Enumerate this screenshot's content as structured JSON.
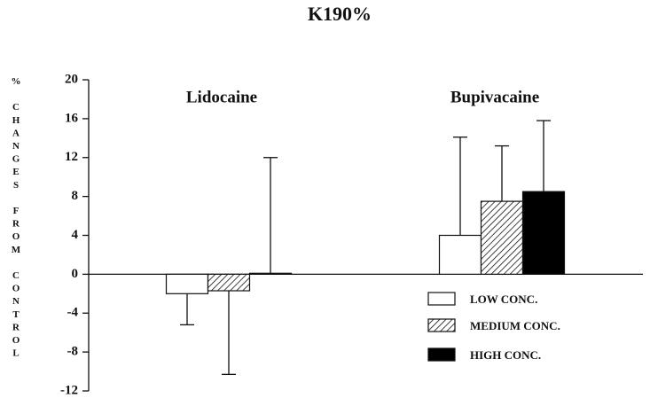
{
  "chart_data": {
    "type": "bar",
    "title": "K190%",
    "y_label": "% CHANGES FROM CONTROL",
    "categories": [
      "Lidocaine",
      "Bupivacaine"
    ],
    "series": [
      {
        "name": "LOW CONC.",
        "color": "#ffffff",
        "values": [
          -2,
          4
        ],
        "errors": [
          3.2,
          10.1
        ]
      },
      {
        "name": "MEDIUM CONC.",
        "color": "#ffffff",
        "pattern": "hatch",
        "values": [
          -1.7,
          7.5
        ],
        "errors": [
          8.6,
          5.7
        ]
      },
      {
        "name": "HIGH CONC.",
        "color": "#000000",
        "values": [
          0.1,
          8.5
        ],
        "errors": [
          11.9,
          7.3
        ]
      }
    ],
    "ylim": [
      -12,
      20
    ],
    "yticks": [
      20,
      16,
      12,
      8,
      4,
      0,
      -4,
      -8,
      -12
    ]
  }
}
